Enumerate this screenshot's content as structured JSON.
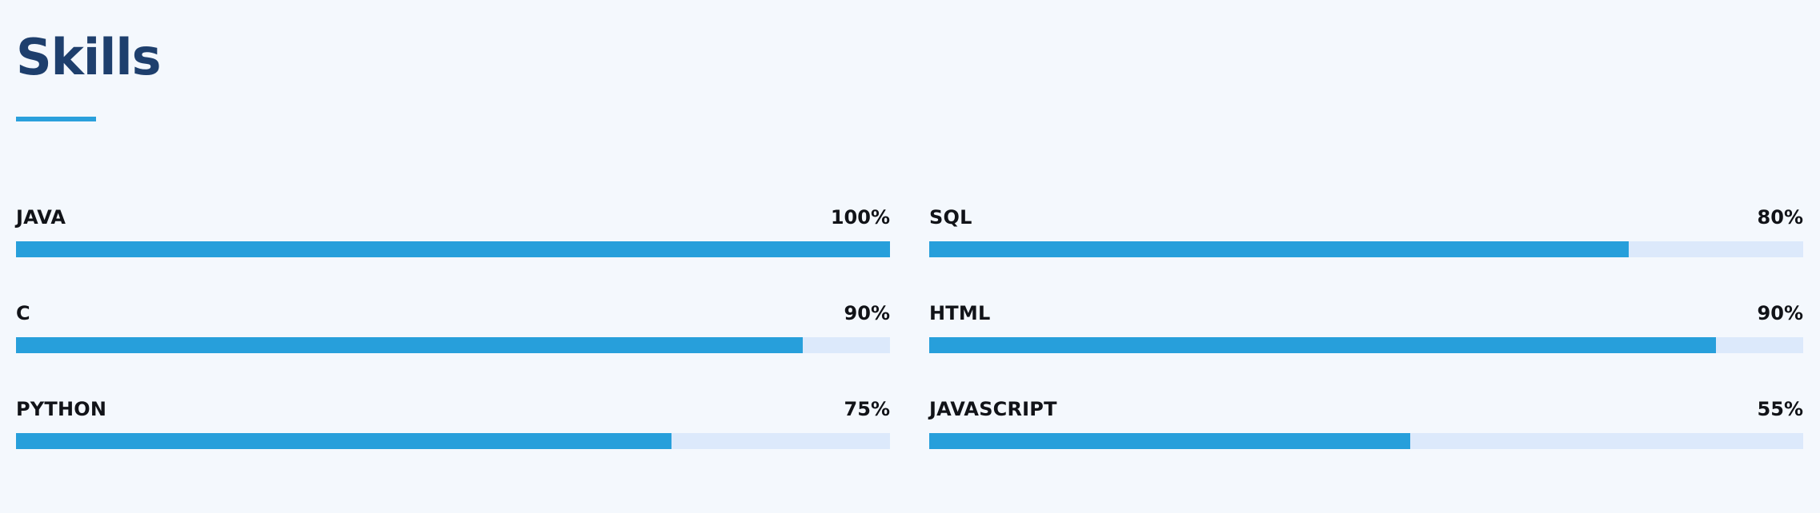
{
  "section": {
    "title": "Skills"
  },
  "colors": {
    "background": "#f4f8fd",
    "title": "#1e3f6d",
    "accent": "#2aa0dc",
    "bar_fill": "#279fdb",
    "bar_track": "#dce9fb",
    "text": "#111318"
  },
  "skills": [
    {
      "name": "JAVA",
      "percent_label": "100%",
      "value": 100
    },
    {
      "name": "SQL",
      "percent_label": "80%",
      "value": 80
    },
    {
      "name": "C",
      "percent_label": "90%",
      "value": 90
    },
    {
      "name": "HTML",
      "percent_label": "90%",
      "value": 90
    },
    {
      "name": "PYTHON",
      "percent_label": "75%",
      "value": 75
    },
    {
      "name": "JAVASCRIPT",
      "percent_label": "55%",
      "value": 55
    }
  ]
}
